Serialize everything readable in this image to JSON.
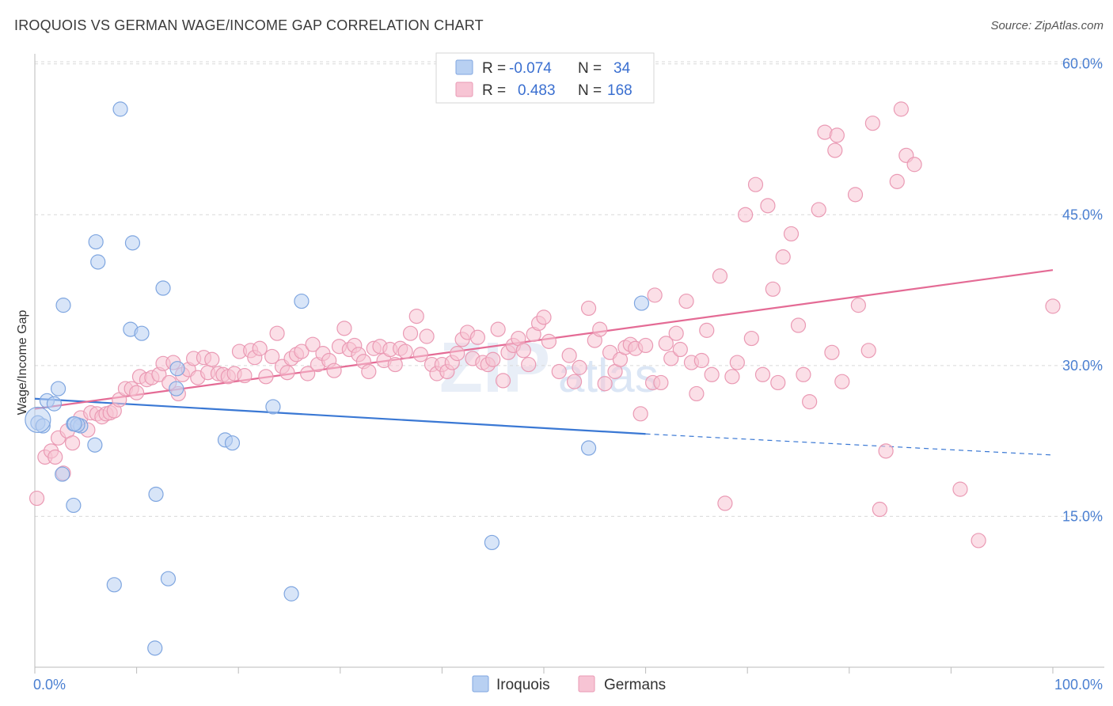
{
  "title": "IROQUOIS VS GERMAN WAGE/INCOME GAP CORRELATION CHART",
  "source": "Source: ZipAtlas.com",
  "watermark": {
    "zip": "ZIP",
    "atlas": "atlas"
  },
  "colors": {
    "iroquois_fill": "#b8d0f2",
    "iroquois_stroke": "#7fa6e0",
    "iroquois_line": "#3a78d4",
    "germans_fill": "#f7c4d4",
    "germans_stroke": "#ea9ab4",
    "germans_line": "#e46b95",
    "grid": "#d9d9d9",
    "tick_text": "#4a7fd1"
  },
  "legend": {
    "rows": [
      {
        "series": "iroquois",
        "r_label": "R =",
        "r_value": "-0.074",
        "n_label": "N =",
        "n_value": "34"
      },
      {
        "series": "germans",
        "r_label": "R =",
        "r_value": "0.483",
        "n_label": "N =",
        "n_value": "168"
      }
    ]
  },
  "chart_data": {
    "type": "scatter",
    "title": "IROQUOIS VS GERMAN WAGE/INCOME GAP CORRELATION CHART",
    "xlabel": "",
    "ylabel": "Wage/Income Gap",
    "xlim": [
      0,
      100
    ],
    "ylim": [
      0,
      61
    ],
    "x_tick_labels": [
      {
        "value": 0,
        "label": "0.0%"
      },
      {
        "value": 100,
        "label": "100.0%"
      }
    ],
    "y_tick_labels": [
      {
        "value": 15,
        "label": "15.0%"
      },
      {
        "value": 30,
        "label": "30.0%"
      },
      {
        "value": 45,
        "label": "45.0%"
      },
      {
        "value": 60,
        "label": "60.0%"
      }
    ],
    "x_minor_ticks": [
      0,
      10,
      20,
      30,
      40,
      50,
      60,
      70,
      80,
      90,
      100
    ],
    "grid_y": [
      15,
      30,
      45,
      60
    ],
    "series": [
      {
        "name": "Iroquois",
        "key": "iroquois",
        "points": [
          [
            0.3,
            24.3
          ],
          [
            1.2,
            26.5
          ],
          [
            0.8,
            24
          ],
          [
            2.3,
            27.7
          ],
          [
            1.9,
            26.2
          ],
          [
            2.7,
            19.2
          ],
          [
            3.8,
            24.2
          ],
          [
            4.5,
            24
          ],
          [
            4.2,
            24.1
          ],
          [
            3.9,
            24.2
          ],
          [
            2.8,
            36
          ],
          [
            6.2,
            40.3
          ],
          [
            8.4,
            55.5
          ],
          [
            6,
            42.3
          ],
          [
            9.6,
            42.2
          ],
          [
            12.6,
            37.7
          ],
          [
            9.4,
            33.6
          ],
          [
            10.5,
            33.2
          ],
          [
            14,
            29.7
          ],
          [
            13.9,
            27.7
          ],
          [
            5.9,
            22.1
          ],
          [
            18.7,
            22.6
          ],
          [
            19.4,
            22.3
          ],
          [
            11.9,
            17.2
          ],
          [
            3.8,
            16.1
          ],
          [
            7.8,
            8.2
          ],
          [
            13.1,
            8.8
          ],
          [
            11.8,
            1.9
          ],
          [
            25.2,
            7.3
          ],
          [
            23.4,
            25.9
          ],
          [
            26.2,
            36.4
          ],
          [
            44.9,
            12.4
          ],
          [
            54.4,
            21.8
          ],
          [
            59.6,
            36.2
          ]
        ],
        "trend": {
          "x0": 0,
          "y0": 26.7,
          "x1": 60,
          "y1": 23.2,
          "dash_to_x": 100,
          "dash_to_y": 21.1
        }
      },
      {
        "name": "Germans",
        "key": "germans",
        "points": [
          [
            0.2,
            16.8
          ],
          [
            1,
            20.9
          ],
          [
            1.6,
            21.5
          ],
          [
            2,
            20.9
          ],
          [
            2.3,
            22.8
          ],
          [
            2.8,
            19.3
          ],
          [
            3.2,
            23.5
          ],
          [
            3.7,
            22.3
          ],
          [
            4.5,
            24.8
          ],
          [
            5.2,
            23.6
          ],
          [
            5.5,
            25.3
          ],
          [
            6.1,
            25.2
          ],
          [
            6.6,
            24.9
          ],
          [
            7,
            25.2
          ],
          [
            7.4,
            25.3
          ],
          [
            7.8,
            25.5
          ],
          [
            8.3,
            26.6
          ],
          [
            8.9,
            27.7
          ],
          [
            9.5,
            27.7
          ],
          [
            10,
            27.3
          ],
          [
            10.3,
            28.9
          ],
          [
            11,
            28.6
          ],
          [
            11.5,
            28.8
          ],
          [
            12.2,
            29.1
          ],
          [
            12.6,
            30.2
          ],
          [
            13.2,
            28.3
          ],
          [
            13.6,
            30.3
          ],
          [
            14.1,
            27.2
          ],
          [
            14.5,
            29.1
          ],
          [
            15.1,
            29.6
          ],
          [
            15.6,
            30.7
          ],
          [
            16,
            28.8
          ],
          [
            16.6,
            30.8
          ],
          [
            17,
            29.3
          ],
          [
            17.4,
            30.6
          ],
          [
            18,
            29.2
          ],
          [
            18.5,
            29.1
          ],
          [
            19,
            28.9
          ],
          [
            19.6,
            29.2
          ],
          [
            20.1,
            31.4
          ],
          [
            20.6,
            29
          ],
          [
            21.2,
            31.5
          ],
          [
            21.6,
            30.8
          ],
          [
            22.1,
            31.7
          ],
          [
            22.7,
            28.9
          ],
          [
            23.3,
            30.9
          ],
          [
            23.8,
            33.2
          ],
          [
            24.3,
            29.9
          ],
          [
            24.8,
            29.3
          ],
          [
            25.2,
            30.7
          ],
          [
            25.7,
            31.1
          ],
          [
            26.2,
            31.4
          ],
          [
            26.8,
            29.2
          ],
          [
            27.3,
            32.1
          ],
          [
            27.8,
            30.1
          ],
          [
            28.3,
            31.2
          ],
          [
            28.9,
            30.5
          ],
          [
            29.4,
            29.5
          ],
          [
            29.9,
            31.9
          ],
          [
            30.4,
            33.7
          ],
          [
            30.9,
            31.6
          ],
          [
            31.4,
            32
          ],
          [
            31.8,
            31.1
          ],
          [
            32.3,
            30.4
          ],
          [
            32.8,
            29.4
          ],
          [
            33.3,
            31.7
          ],
          [
            33.9,
            31.9
          ],
          [
            34.3,
            30.5
          ],
          [
            34.9,
            31.6
          ],
          [
            35.4,
            30.1
          ],
          [
            35.9,
            31.7
          ],
          [
            36.4,
            31.4
          ],
          [
            36.9,
            33.2
          ],
          [
            37.5,
            34.9
          ],
          [
            37.9,
            31.1
          ],
          [
            38.5,
            32.9
          ],
          [
            39,
            30.1
          ],
          [
            39.5,
            29.2
          ],
          [
            40,
            30.1
          ],
          [
            40.5,
            29.4
          ],
          [
            41,
            30.3
          ],
          [
            41.5,
            31.2
          ],
          [
            42,
            32.6
          ],
          [
            42.5,
            33.3
          ],
          [
            43,
            30.7
          ],
          [
            43.5,
            32.8
          ],
          [
            44,
            30.3
          ],
          [
            44.5,
            30.1
          ],
          [
            45,
            30.6
          ],
          [
            45.5,
            33.6
          ],
          [
            46,
            28.5
          ],
          [
            46.5,
            31.3
          ],
          [
            47,
            32
          ],
          [
            47.5,
            32.7
          ],
          [
            48,
            31.5
          ],
          [
            48.5,
            30.1
          ],
          [
            49,
            33.1
          ],
          [
            49.5,
            34.2
          ],
          [
            50,
            34.8
          ],
          [
            50.5,
            32.4
          ],
          [
            51.5,
            29.4
          ],
          [
            52.5,
            31
          ],
          [
            53,
            28.4
          ],
          [
            54.4,
            35.7
          ],
          [
            53.5,
            29.8
          ],
          [
            55,
            32.5
          ],
          [
            55.5,
            33.6
          ],
          [
            56,
            28.2
          ],
          [
            56.5,
            31.3
          ],
          [
            57,
            29.4
          ],
          [
            57.5,
            30.6
          ],
          [
            58,
            31.8
          ],
          [
            58.5,
            32.1
          ],
          [
            59,
            31.7
          ],
          [
            59.5,
            25.2
          ],
          [
            60,
            32
          ],
          [
            60.7,
            28.3
          ],
          [
            60.9,
            37
          ],
          [
            61.5,
            28.3
          ],
          [
            62,
            32.2
          ],
          [
            62.5,
            30.7
          ],
          [
            63,
            33.2
          ],
          [
            63.4,
            31.6
          ],
          [
            64,
            36.4
          ],
          [
            64.5,
            30.3
          ],
          [
            65,
            27.2
          ],
          [
            65.5,
            30.5
          ],
          [
            66,
            33.5
          ],
          [
            66.5,
            29.1
          ],
          [
            67.3,
            38.9
          ],
          [
            67.8,
            16.3
          ],
          [
            68.5,
            28.9
          ],
          [
            69,
            30.3
          ],
          [
            69.8,
            45
          ],
          [
            70.8,
            48
          ],
          [
            70.4,
            32.7
          ],
          [
            71.5,
            29.1
          ],
          [
            72,
            45.9
          ],
          [
            72.5,
            37.6
          ],
          [
            73,
            28.3
          ],
          [
            73.5,
            40.8
          ],
          [
            74.3,
            43.1
          ],
          [
            75,
            34
          ],
          [
            75.5,
            29.1
          ],
          [
            76.1,
            26.4
          ],
          [
            77,
            45.5
          ],
          [
            77.6,
            53.2
          ],
          [
            78.3,
            31.3
          ],
          [
            78.6,
            51.4
          ],
          [
            78.8,
            52.9
          ],
          [
            79.3,
            28.4
          ],
          [
            80.6,
            47
          ],
          [
            80.9,
            36
          ],
          [
            81.9,
            31.5
          ],
          [
            82.3,
            54.1
          ],
          [
            83,
            15.7
          ],
          [
            83.6,
            21.5
          ],
          [
            84.7,
            48.3
          ],
          [
            85.1,
            55.5
          ],
          [
            85.6,
            50.9
          ],
          [
            86.4,
            50
          ],
          [
            90.9,
            17.7
          ],
          [
            92.7,
            12.6
          ],
          [
            100,
            35.9
          ]
        ],
        "trend": {
          "x0": 0,
          "y0": 25.7,
          "x1": 100,
          "y1": 39.5
        }
      }
    ],
    "bottom_legend": [
      {
        "key": "iroquois",
        "label": "Iroquois"
      },
      {
        "key": "germans",
        "label": "Germans"
      }
    ]
  }
}
